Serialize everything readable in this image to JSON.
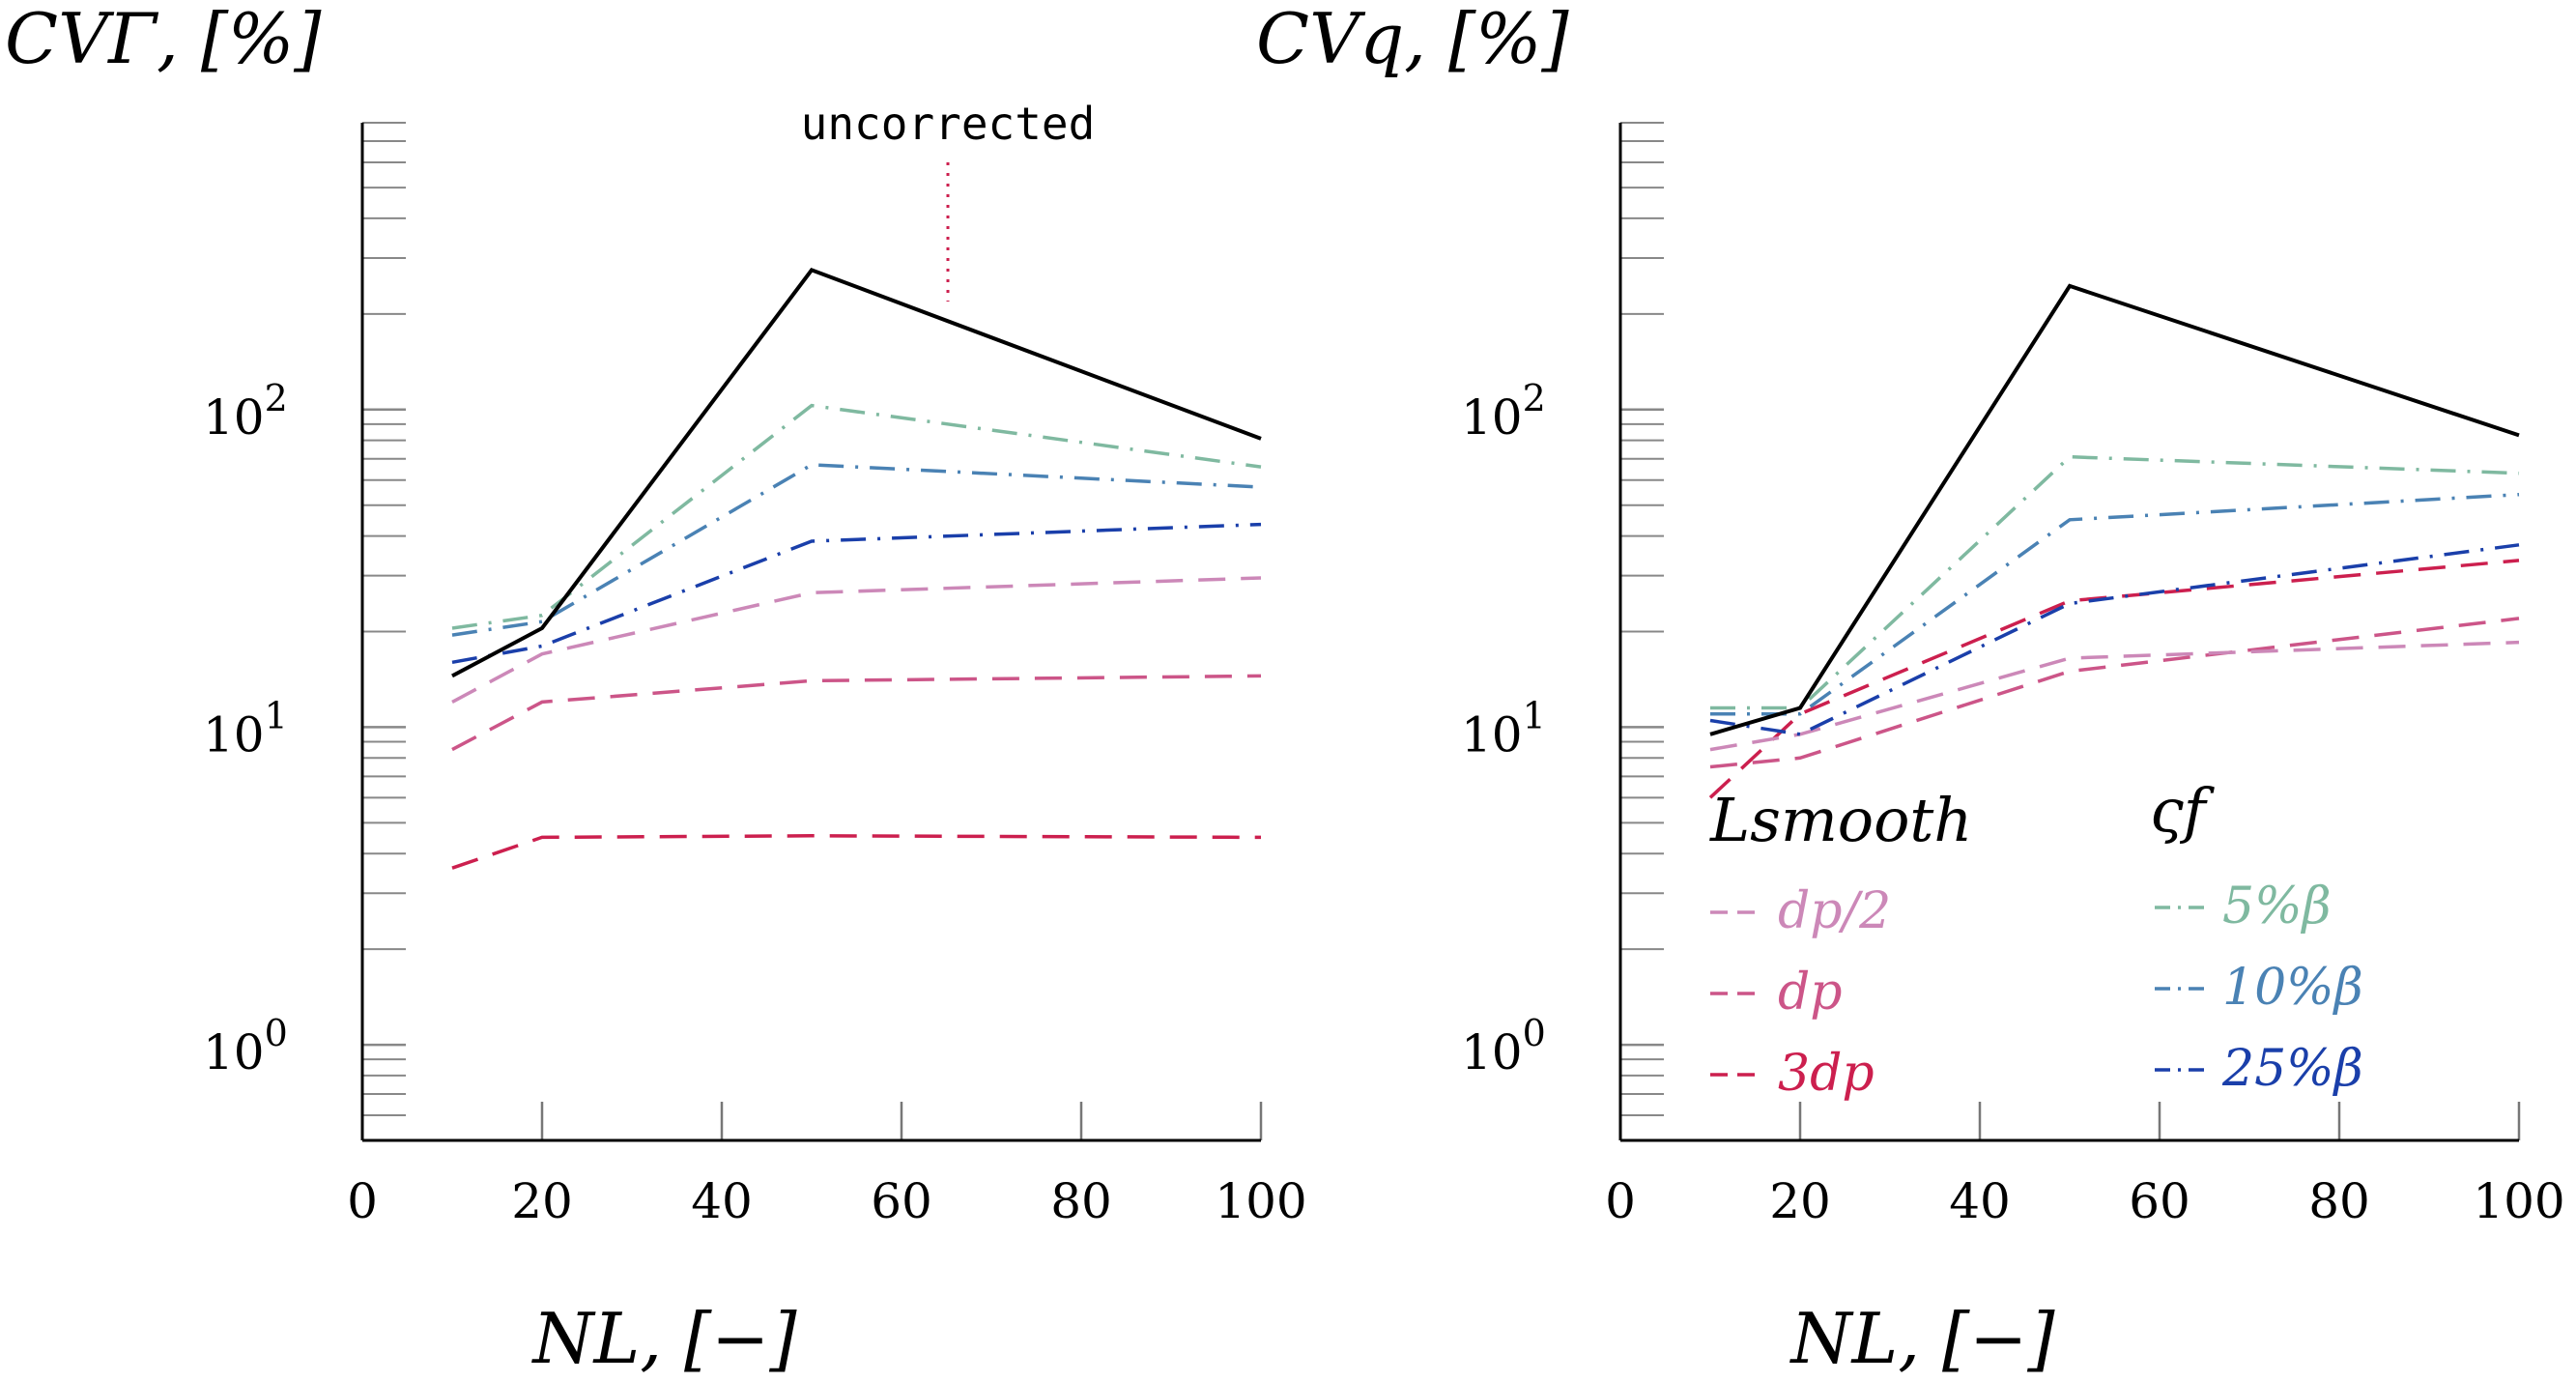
{
  "chart_data": [
    {
      "type": "line",
      "ylabel": "CVΓ, [%]",
      "xlabel": "NL, [−]",
      "yscale": "log",
      "ylim": [
        0.5,
        800
      ],
      "xlim": [
        0,
        100
      ],
      "x_ticks": [
        "0",
        "20",
        "40",
        "60",
        "80",
        "100"
      ],
      "y_ticks": [
        {
          "base": "10",
          "exp": "0"
        },
        {
          "base": "10",
          "exp": "1"
        },
        {
          "base": "10",
          "exp": "2"
        }
      ],
      "annotations": [
        {
          "text": "uncorrected",
          "x": 65
        }
      ],
      "x": [
        10,
        20,
        50,
        100
      ],
      "series": [
        {
          "name": "uncorrected",
          "color": "#000000",
          "dash": "solid",
          "values": [
            14.5,
            20.5,
            275,
            81
          ]
        },
        {
          "name": "5%β",
          "color": "#7fb9a0",
          "dash": "dashdot",
          "values": [
            20.5,
            22.5,
            103,
            66
          ]
        },
        {
          "name": "10%β",
          "color": "#4a82b4",
          "dash": "dashdot",
          "values": [
            19.5,
            21.5,
            67,
            57
          ]
        },
        {
          "name": "25%β",
          "color": "#1a3faa",
          "dash": "dashdot",
          "values": [
            16,
            18,
            38.5,
            43.5
          ]
        },
        {
          "name": "dp/2",
          "color": "#cc88b8",
          "dash": "dashed",
          "values": [
            12,
            17,
            26.5,
            29.5
          ]
        },
        {
          "name": "dp",
          "color": "#cc5588",
          "dash": "dashed",
          "values": [
            8.5,
            12,
            14,
            14.5
          ]
        },
        {
          "name": "3dp",
          "color": "#cc1f4e",
          "dash": "dashed",
          "values": [
            3.6,
            4.5,
            4.55,
            4.5
          ]
        }
      ]
    },
    {
      "type": "line",
      "ylabel": "CVq, [%]",
      "xlabel": "NL, [−]",
      "yscale": "log",
      "ylim": [
        0.5,
        800
      ],
      "xlim": [
        0,
        100
      ],
      "x_ticks": [
        "0",
        "20",
        "40",
        "60",
        "80",
        "100"
      ],
      "y_ticks": [
        {
          "base": "10",
          "exp": "0"
        },
        {
          "base": "10",
          "exp": "1"
        },
        {
          "base": "10",
          "exp": "2"
        }
      ],
      "x": [
        10,
        20,
        50,
        100
      ],
      "series": [
        {
          "name": "uncorrected",
          "color": "#000000",
          "dash": "solid",
          "values": [
            9.5,
            11.5,
            245,
            83
          ]
        },
        {
          "name": "5%β",
          "color": "#7fb9a0",
          "dash": "dashdot",
          "values": [
            11.5,
            11.5,
            71,
            63
          ]
        },
        {
          "name": "10%β",
          "color": "#4a82b4",
          "dash": "dashdot",
          "values": [
            11,
            11,
            45,
            54
          ]
        },
        {
          "name": "25%β",
          "color": "#1a3faa",
          "dash": "dashdot",
          "values": [
            10.5,
            9.5,
            24.5,
            37.5
          ]
        },
        {
          "name": "dp/2",
          "color": "#cc88b8",
          "dash": "dashed",
          "values": [
            8.5,
            9.5,
            16.5,
            18.5
          ]
        },
        {
          "name": "dp",
          "color": "#cc5588",
          "dash": "dashed",
          "values": [
            7.5,
            8,
            15,
            22
          ]
        },
        {
          "name": "3dp",
          "color": "#cc1f4e",
          "dash": "dashed",
          "values": [
            6,
            11,
            25,
            33.5
          ]
        }
      ]
    }
  ],
  "legend": {
    "left_title": "Lsmooth",
    "right_title": "ςf",
    "left_items": [
      {
        "label": "dp/2",
        "color": "#cc88b8",
        "dash": "dashed"
      },
      {
        "label": "dp",
        "color": "#cc5588",
        "dash": "dashed"
      },
      {
        "label": "3dp",
        "color": "#cc1f4e",
        "dash": "dashed"
      }
    ],
    "right_items": [
      {
        "label": "5%β",
        "color": "#7fb9a0",
        "dash": "dashdot"
      },
      {
        "label": "10%β",
        "color": "#4a82b4",
        "dash": "dashdot"
      },
      {
        "label": "25%β",
        "color": "#1a3faa",
        "dash": "dashdot"
      }
    ]
  }
}
